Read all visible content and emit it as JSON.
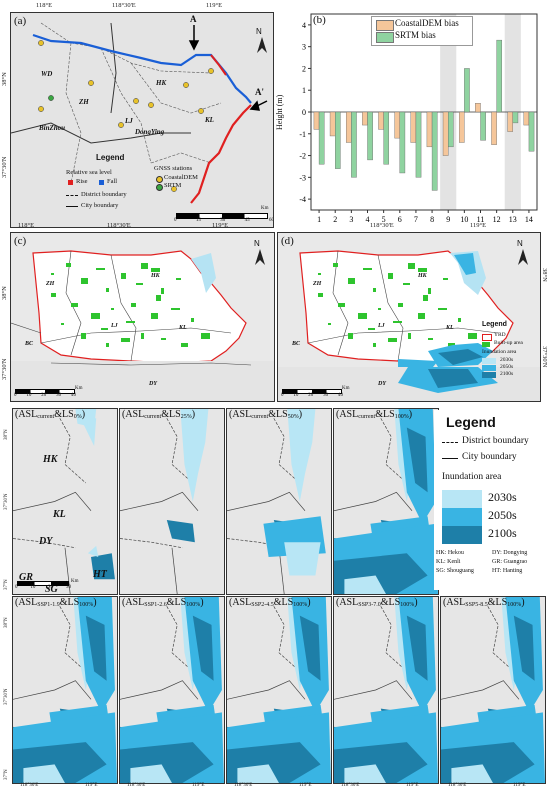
{
  "panel_a": {
    "label": "(a)",
    "top_ticks": [
      "118°E",
      "118°30'E",
      "119°E"
    ],
    "left_ticks": [
      "38°N",
      "37°30'N"
    ],
    "point_labels": [
      "A",
      "A'"
    ],
    "places": [
      "WD",
      "ZH",
      "HK",
      "BinZhou",
      "LJ",
      "DongYing",
      "KL"
    ],
    "legend": {
      "title": "Legend",
      "sea_level_title": "Relative sea level",
      "rise": "Rise",
      "fall": "Fall",
      "gnss_title": "GNSS stations",
      "coastaldem": "CoastalDEM",
      "srtm": "SRTM",
      "district": "District boundary",
      "city": "City boundary"
    },
    "scale": [
      "0",
      "15",
      "30",
      "45",
      "60"
    ],
    "scale_unit": "Km",
    "north": "N"
  },
  "panel_b": {
    "label": "(b)",
    "legend_coastaldem": "CoastalDEM bias",
    "legend_srtm": "SRTM bias",
    "ylabel": "Height (m)",
    "colors": {
      "coastaldem": "#f5c69a",
      "srtm": "#8fd3a0"
    }
  },
  "chart_data": {
    "type": "bar",
    "categories": [
      "1",
      "2",
      "3",
      "4",
      "5",
      "6",
      "7",
      "8",
      "9",
      "10",
      "11",
      "12",
      "13",
      "14"
    ],
    "series": [
      {
        "name": "CoastalDEM bias",
        "values": [
          -0.8,
          -1.1,
          -1.4,
          -0.6,
          -0.8,
          -1.2,
          -1.4,
          -1.6,
          -2.0,
          -1.4,
          0.4,
          -1.5,
          -0.9,
          -0.6
        ]
      },
      {
        "name": "SRTM bias",
        "values": [
          -2.4,
          -2.6,
          -3.0,
          -2.2,
          -2.4,
          -2.8,
          -3.0,
          -3.6,
          -1.6,
          2.0,
          -1.3,
          3.3,
          -0.5,
          -1.8
        ]
      }
    ],
    "ylabel": "Height (m)",
    "ylim": [
      -4.5,
      4.5
    ],
    "yticks": [
      "-4",
      "-3",
      "-2",
      "-1",
      "0",
      "1",
      "2",
      "3",
      "4"
    ],
    "shaded_categories": [
      "9",
      "13"
    ]
  },
  "panel_c": {
    "label": "(c)",
    "top_ticks": [
      "118°E",
      "118°30'E",
      "119°E"
    ],
    "left_ticks": [
      "38°N",
      "37°30'N"
    ],
    "places": [
      "ZH",
      "HK",
      "LJ",
      "KL",
      "BC",
      "DY"
    ],
    "scale": [
      "0",
      "10",
      "20",
      "30",
      "40"
    ],
    "scale_unit": "Km",
    "north": "N"
  },
  "panel_d": {
    "label": "(d)",
    "top_ticks": [
      "118°30'E",
      "119°E"
    ],
    "right_ticks": [
      "38°N",
      "37°30'N"
    ],
    "places": [
      "ZH",
      "HK",
      "LJ",
      "KL",
      "BC",
      "DY"
    ],
    "scale": [
      "0",
      "10",
      "20",
      "30",
      "40"
    ],
    "scale_unit": "Km",
    "north": "N",
    "legend": {
      "title": "Legend",
      "yrd": "YRD",
      "built": "Built-up area",
      "inundation": "Inundation area",
      "y2030": "2030s",
      "y2050": "2050s",
      "y2100": "2100s"
    }
  },
  "big_legend": {
    "title": "Legend",
    "district": "District boundary",
    "city": "City boundary",
    "inundation": "Inundation area",
    "y2030": "2030s",
    "y2050": "2050s",
    "y2100": "2100s",
    "abbrev": [
      "HK: Hekou",
      "DY: Dongying",
      "KL: Kenli",
      "GR: Guangrao",
      "SG: Shouguang",
      "HT: Hanting"
    ],
    "colors": {
      "y2030": "#b8e6f5",
      "y2050": "#39b4e3",
      "y2100": "#1e7fa8"
    }
  },
  "row1": [
    {
      "pre": "(ASL",
      "sub": "current",
      "post": "&LS",
      "sub2": "0%",
      "end": ")"
    },
    {
      "pre": "(ASL",
      "sub": "current",
      "post": "&LS",
      "sub2": "25%",
      "end": ")"
    },
    {
      "pre": "(ASL",
      "sub": "current",
      "post": "&LS",
      "sub2": "50%",
      "end": ")"
    },
    {
      "pre": "(ASL",
      "sub": "current",
      "post": "&LS",
      "sub2": "100%",
      "end": ")"
    }
  ],
  "row2": [
    {
      "pre": "(ASL",
      "sub": "SSP1-1.9",
      "post": "&LS",
      "sub2": "100%",
      "end": ")"
    },
    {
      "pre": "(ASL",
      "sub": "SSP1-2.6",
      "post": "&LS",
      "sub2": "100%",
      "end": ")"
    },
    {
      "pre": "(ASL",
      "sub": "SSP2-4.5",
      "post": "&LS",
      "sub2": "100%",
      "end": ")"
    },
    {
      "pre": "(ASL",
      "sub": "SSP3-7.0",
      "post": "&LS",
      "sub2": "100%",
      "end": ")"
    },
    {
      "pre": "(ASL",
      "sub": "SSP5-8.5",
      "post": "&LS",
      "sub2": "100%",
      "end": ")"
    }
  ],
  "small_map_places": [
    "HK",
    "KL",
    "DY",
    "GR",
    "SG",
    "HT"
  ],
  "small_ticks_bottom": [
    "118°30'E",
    "119°E"
  ],
  "small_ticks_left": [
    "38°N",
    "37°30'N",
    "37°N"
  ],
  "small_scale": [
    "0",
    "10",
    "20",
    "30"
  ],
  "small_scale_unit": "Km"
}
